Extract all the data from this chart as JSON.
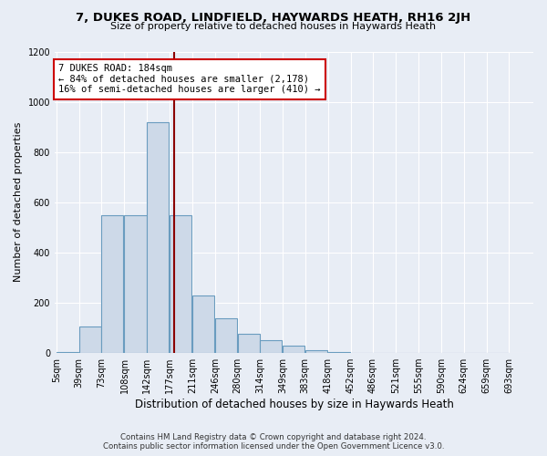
{
  "title": "7, DUKES ROAD, LINDFIELD, HAYWARDS HEATH, RH16 2JH",
  "subtitle": "Size of property relative to detached houses in Haywards Heath",
  "xlabel": "Distribution of detached houses by size in Haywards Heath",
  "ylabel": "Number of detached properties",
  "bar_color": "#cdd9e8",
  "bar_edge_color": "#6a9cbf",
  "highlight_color": "#8b0000",
  "property_line_x": 184,
  "annotation_text": "7 DUKES ROAD: 184sqm\n← 84% of detached houses are smaller (2,178)\n16% of semi-detached houses are larger (410) →",
  "bins": [
    5,
    39,
    73,
    108,
    142,
    177,
    211,
    246,
    280,
    314,
    349,
    383,
    418,
    452,
    486,
    521,
    555,
    590,
    624,
    659,
    693
  ],
  "counts": [
    3,
    105,
    550,
    550,
    920,
    550,
    230,
    140,
    75,
    50,
    30,
    10,
    5,
    2,
    1,
    0,
    0,
    0,
    0,
    0
  ],
  "bin_width": 34,
  "ylim": [
    0,
    1200
  ],
  "yticks": [
    0,
    200,
    400,
    600,
    800,
    1000,
    1200
  ],
  "bg_color": "#e8edf5",
  "plot_bg_color": "#e8edf5",
  "grid_color": "#ffffff",
  "footer": "Contains HM Land Registry data © Crown copyright and database right 2024.\nContains public sector information licensed under the Open Government Licence v3.0.",
  "annotation_box_facecolor": "#ffffff",
  "annotation_box_edgecolor": "#cc0000",
  "figsize": [
    6.0,
    5.0
  ],
  "dpi": 100
}
